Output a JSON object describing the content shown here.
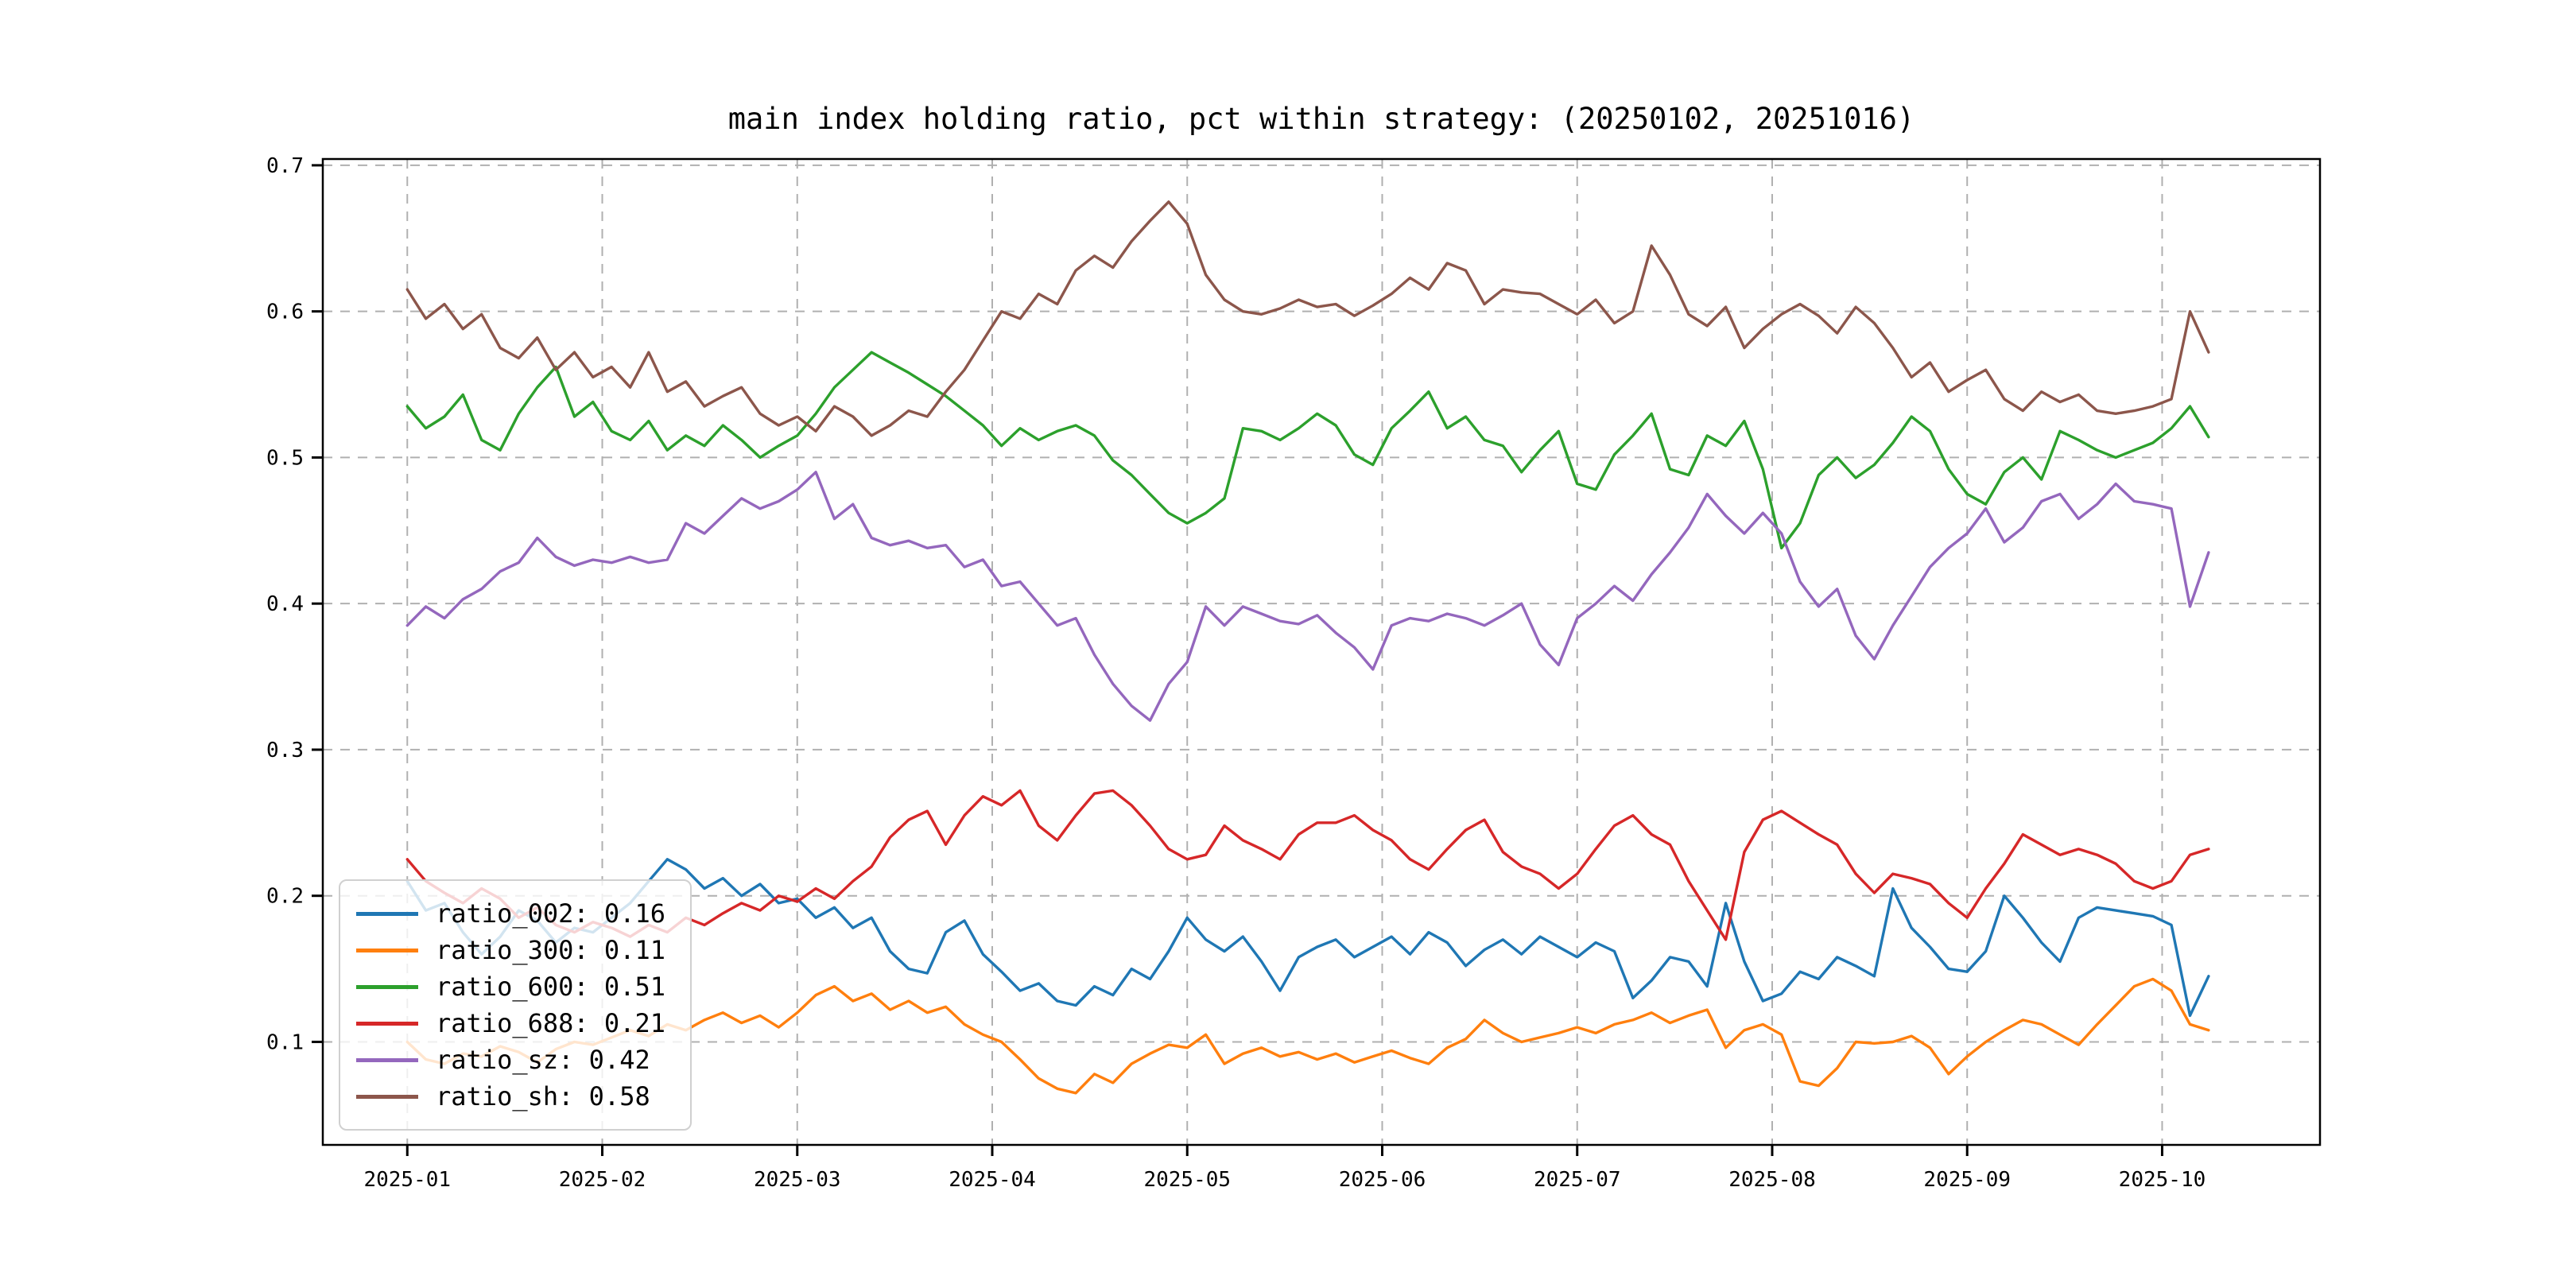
{
  "page": {
    "background": "#ffffff"
  },
  "chart_data": {
    "type": "line",
    "title": "main index holding ratio, pct within strategy: (20250102, 20251016)",
    "date_range": [
      "20250102",
      "20251016"
    ],
    "grid": {
      "on": true,
      "color": "#b0b0b0",
      "style": "dashed"
    },
    "x_axis": {
      "tick_labels": [
        "2025-01",
        "2025-02",
        "2025-03",
        "2025-04",
        "2025-05",
        "2025-06",
        "2025-07",
        "2025-08",
        "2025-09",
        "2025-10"
      ],
      "tick_days": [
        0,
        21,
        42,
        63,
        84,
        105,
        126,
        147,
        168,
        189
      ],
      "domain_days": [
        -9.1,
        206.0
      ],
      "data_day_start": 0,
      "data_day_step": 2
    },
    "y_axis": {
      "ticks": [
        0.1,
        0.2,
        0.3,
        0.4,
        0.5,
        0.6,
        0.7
      ],
      "tick_labels": [
        "0.1",
        "0.2",
        "0.3",
        "0.4",
        "0.5",
        "0.6",
        "0.7"
      ],
      "lim": [
        0.0295,
        0.7043
      ]
    },
    "legend": {
      "position": "lower left",
      "entries": [
        {
          "series": "ratio_002",
          "label": "ratio_002: 0.16",
          "value": 0.16,
          "color": "#1f77b4"
        },
        {
          "series": "ratio_300",
          "label": "ratio_300: 0.11",
          "value": 0.11,
          "color": "#ff7f0e"
        },
        {
          "series": "ratio_600",
          "label": "ratio_600: 0.51",
          "value": 0.51,
          "color": "#2ca02c"
        },
        {
          "series": "ratio_688",
          "label": "ratio_688: 0.21",
          "value": 0.21,
          "color": "#d62728"
        },
        {
          "series": "ratio_sz",
          "label": "ratio_sz: 0.42",
          "value": 0.42,
          "color": "#9467bd"
        },
        {
          "series": "ratio_sh",
          "label": "ratio_sh: 0.58",
          "value": 0.58,
          "color": "#8c564b"
        }
      ]
    },
    "series": [
      {
        "name": "ratio_002",
        "color": "#1f77b4",
        "values": [
          0.21,
          0.19,
          0.195,
          0.175,
          0.16,
          0.172,
          0.19,
          0.183,
          0.168,
          0.178,
          0.175,
          0.185,
          0.195,
          0.21,
          0.225,
          0.218,
          0.205,
          0.212,
          0.2,
          0.208,
          0.195,
          0.198,
          0.185,
          0.192,
          0.178,
          0.185,
          0.162,
          0.15,
          0.147,
          0.175,
          0.183,
          0.16,
          0.148,
          0.135,
          0.14,
          0.128,
          0.125,
          0.138,
          0.132,
          0.15,
          0.143,
          0.162,
          0.185,
          0.17,
          0.162,
          0.172,
          0.155,
          0.135,
          0.158,
          0.165,
          0.17,
          0.158,
          0.165,
          0.172,
          0.16,
          0.175,
          0.168,
          0.152,
          0.163,
          0.17,
          0.16,
          0.172,
          0.165,
          0.158,
          0.168,
          0.162,
          0.13,
          0.142,
          0.158,
          0.155,
          0.138,
          0.195,
          0.155,
          0.128,
          0.133,
          0.148,
          0.143,
          0.158,
          0.152,
          0.145,
          0.205,
          0.178,
          0.165,
          0.15,
          0.148,
          0.162,
          0.2,
          0.185,
          0.168,
          0.155,
          0.185,
          0.192,
          0.19,
          0.188,
          0.186,
          0.18,
          0.118,
          0.145
        ]
      },
      {
        "name": "ratio_300",
        "color": "#ff7f0e",
        "values": [
          0.1,
          0.088,
          0.085,
          0.092,
          0.09,
          0.097,
          0.093,
          0.086,
          0.095,
          0.1,
          0.098,
          0.103,
          0.108,
          0.104,
          0.112,
          0.108,
          0.115,
          0.12,
          0.113,
          0.118,
          0.11,
          0.12,
          0.132,
          0.138,
          0.128,
          0.133,
          0.122,
          0.128,
          0.12,
          0.124,
          0.112,
          0.105,
          0.1,
          0.088,
          0.075,
          0.068,
          0.065,
          0.078,
          0.072,
          0.085,
          0.092,
          0.098,
          0.096,
          0.105,
          0.085,
          0.092,
          0.096,
          0.09,
          0.093,
          0.088,
          0.092,
          0.086,
          0.09,
          0.094,
          0.089,
          0.085,
          0.096,
          0.102,
          0.115,
          0.106,
          0.1,
          0.103,
          0.106,
          0.11,
          0.106,
          0.112,
          0.115,
          0.12,
          0.113,
          0.118,
          0.122,
          0.096,
          0.108,
          0.112,
          0.105,
          0.073,
          0.07,
          0.082,
          0.1,
          0.099,
          0.1,
          0.104,
          0.096,
          0.078,
          0.09,
          0.1,
          0.108,
          0.115,
          0.112,
          0.105,
          0.098,
          0.112,
          0.125,
          0.138,
          0.143,
          0.135,
          0.112,
          0.108
        ]
      },
      {
        "name": "ratio_600",
        "color": "#2ca02c",
        "values": [
          0.535,
          0.52,
          0.528,
          0.543,
          0.512,
          0.505,
          0.53,
          0.548,
          0.562,
          0.528,
          0.538,
          0.518,
          0.512,
          0.525,
          0.505,
          0.515,
          0.508,
          0.522,
          0.512,
          0.5,
          0.508,
          0.515,
          0.53,
          0.548,
          0.56,
          0.572,
          0.565,
          0.558,
          0.55,
          0.542,
          0.532,
          0.522,
          0.508,
          0.52,
          0.512,
          0.518,
          0.522,
          0.515,
          0.498,
          0.488,
          0.475,
          0.462,
          0.455,
          0.462,
          0.472,
          0.52,
          0.518,
          0.512,
          0.52,
          0.53,
          0.522,
          0.502,
          0.495,
          0.52,
          0.532,
          0.545,
          0.52,
          0.528,
          0.512,
          0.508,
          0.49,
          0.505,
          0.518,
          0.482,
          0.478,
          0.502,
          0.515,
          0.53,
          0.492,
          0.488,
          0.515,
          0.508,
          0.525,
          0.492,
          0.438,
          0.455,
          0.488,
          0.5,
          0.486,
          0.495,
          0.51,
          0.528,
          0.518,
          0.492,
          0.475,
          0.468,
          0.49,
          0.5,
          0.485,
          0.518,
          0.512,
          0.505,
          0.5,
          0.505,
          0.51,
          0.52,
          0.535,
          0.514
        ]
      },
      {
        "name": "ratio_688",
        "color": "#d62728",
        "values": [
          0.225,
          0.21,
          0.202,
          0.195,
          0.205,
          0.198,
          0.185,
          0.192,
          0.18,
          0.175,
          0.182,
          0.178,
          0.172,
          0.18,
          0.175,
          0.185,
          0.18,
          0.188,
          0.195,
          0.19,
          0.2,
          0.196,
          0.205,
          0.198,
          0.21,
          0.22,
          0.24,
          0.252,
          0.258,
          0.235,
          0.255,
          0.268,
          0.262,
          0.272,
          0.248,
          0.238,
          0.255,
          0.27,
          0.272,
          0.262,
          0.248,
          0.232,
          0.225,
          0.228,
          0.248,
          0.238,
          0.232,
          0.225,
          0.242,
          0.25,
          0.25,
          0.255,
          0.245,
          0.238,
          0.225,
          0.218,
          0.232,
          0.245,
          0.252,
          0.23,
          0.22,
          0.215,
          0.205,
          0.215,
          0.232,
          0.248,
          0.255,
          0.242,
          0.235,
          0.21,
          0.19,
          0.17,
          0.23,
          0.252,
          0.258,
          0.25,
          0.242,
          0.235,
          0.215,
          0.202,
          0.215,
          0.212,
          0.208,
          0.195,
          0.185,
          0.205,
          0.222,
          0.242,
          0.235,
          0.228,
          0.232,
          0.228,
          0.222,
          0.21,
          0.205,
          0.21,
          0.228,
          0.232
        ]
      },
      {
        "name": "ratio_sz",
        "color": "#9467bd",
        "values": [
          0.385,
          0.398,
          0.39,
          0.403,
          0.41,
          0.422,
          0.428,
          0.445,
          0.432,
          0.426,
          0.43,
          0.428,
          0.432,
          0.428,
          0.43,
          0.455,
          0.448,
          0.46,
          0.472,
          0.465,
          0.47,
          0.478,
          0.49,
          0.458,
          0.468,
          0.445,
          0.44,
          0.443,
          0.438,
          0.44,
          0.425,
          0.43,
          0.412,
          0.415,
          0.4,
          0.385,
          0.39,
          0.365,
          0.345,
          0.33,
          0.32,
          0.345,
          0.36,
          0.398,
          0.385,
          0.398,
          0.393,
          0.388,
          0.386,
          0.392,
          0.38,
          0.37,
          0.355,
          0.385,
          0.39,
          0.388,
          0.393,
          0.39,
          0.385,
          0.392,
          0.4,
          0.372,
          0.358,
          0.39,
          0.4,
          0.412,
          0.402,
          0.42,
          0.435,
          0.452,
          0.475,
          0.46,
          0.448,
          0.462,
          0.448,
          0.415,
          0.398,
          0.41,
          0.378,
          0.362,
          0.385,
          0.405,
          0.425,
          0.438,
          0.448,
          0.465,
          0.442,
          0.452,
          0.47,
          0.475,
          0.458,
          0.468,
          0.482,
          0.47,
          0.468,
          0.465,
          0.398,
          0.435
        ]
      },
      {
        "name": "ratio_sh",
        "color": "#8c564b",
        "values": [
          0.615,
          0.595,
          0.605,
          0.588,
          0.598,
          0.575,
          0.568,
          0.582,
          0.56,
          0.572,
          0.555,
          0.562,
          0.548,
          0.572,
          0.545,
          0.552,
          0.535,
          0.542,
          0.548,
          0.53,
          0.522,
          0.528,
          0.518,
          0.535,
          0.528,
          0.515,
          0.522,
          0.532,
          0.528,
          0.545,
          0.56,
          0.58,
          0.6,
          0.595,
          0.612,
          0.605,
          0.628,
          0.638,
          0.63,
          0.648,
          0.662,
          0.675,
          0.66,
          0.625,
          0.608,
          0.6,
          0.598,
          0.602,
          0.608,
          0.603,
          0.605,
          0.597,
          0.604,
          0.612,
          0.623,
          0.615,
          0.633,
          0.628,
          0.605,
          0.615,
          0.613,
          0.612,
          0.605,
          0.598,
          0.608,
          0.592,
          0.6,
          0.645,
          0.625,
          0.598,
          0.59,
          0.603,
          0.575,
          0.588,
          0.598,
          0.605,
          0.597,
          0.585,
          0.603,
          0.592,
          0.575,
          0.555,
          0.565,
          0.545,
          0.553,
          0.56,
          0.54,
          0.532,
          0.545,
          0.538,
          0.543,
          0.532,
          0.53,
          0.532,
          0.535,
          0.54,
          0.6,
          0.572
        ]
      }
    ]
  }
}
